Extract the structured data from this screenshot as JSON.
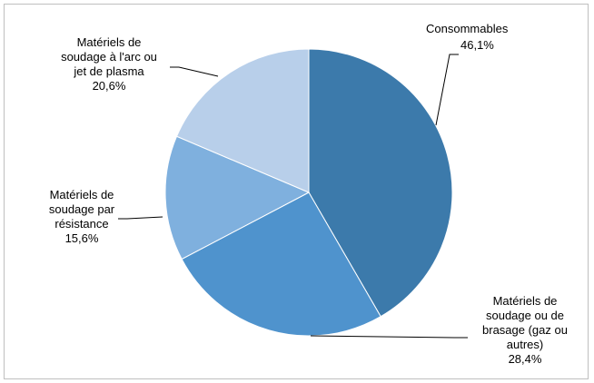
{
  "chart_data": {
    "type": "pie",
    "title": "",
    "slices": [
      {
        "label_lines": [
          "Consommables"
        ],
        "value_label": "46,1%",
        "value": 46.1,
        "color": "#3c7aab"
      },
      {
        "label_lines": [
          "Matériels de",
          "soudage ou de",
          "brasage (gaz ou",
          "autres)"
        ],
        "value_label": "28,4%",
        "value": 28.4,
        "color": "#4f93cd"
      },
      {
        "label_lines": [
          "Matériels de",
          "soudage par",
          "résistance"
        ],
        "value_label": "15,6%",
        "value": 15.6,
        "color": "#7fb0de"
      },
      {
        "label_lines": [
          "Matériels de",
          "soudage à l'arc ou",
          "jet de plasma"
        ],
        "value_label": "20,6%",
        "value": 20.6,
        "color": "#b8cfea"
      }
    ],
    "start_angle_deg": 0,
    "direction": "clockwise",
    "legend": "none"
  }
}
